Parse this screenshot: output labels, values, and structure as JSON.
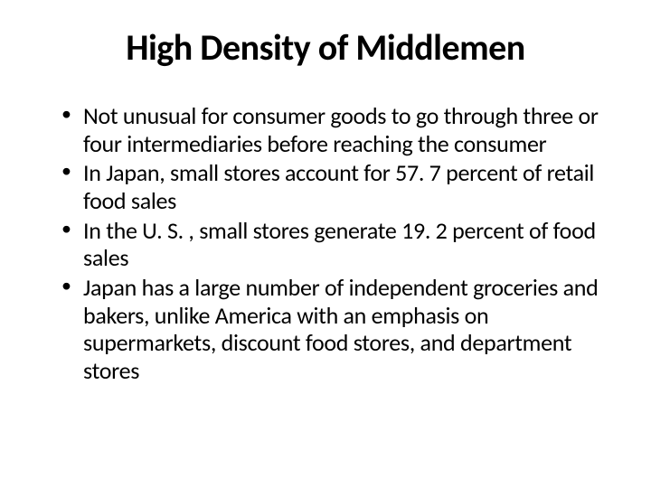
{
  "slide": {
    "title": "High Density of Middlemen",
    "bullets": [
      "Not unusual for consumer goods to go through three or four intermediaries before reaching the consumer",
      "In Japan, small stores account for 57. 7 percent of retail food sales",
      "In the U. S. , small stores generate 19. 2 percent of food sales",
      "Japan has a large number of independent groceries and bakers, unlike America with an emphasis on supermarkets, discount food stores, and department stores"
    ],
    "title_fontsize": 40,
    "body_fontsize": 26,
    "text_color": "#000000",
    "background_color": "#ffffff"
  }
}
